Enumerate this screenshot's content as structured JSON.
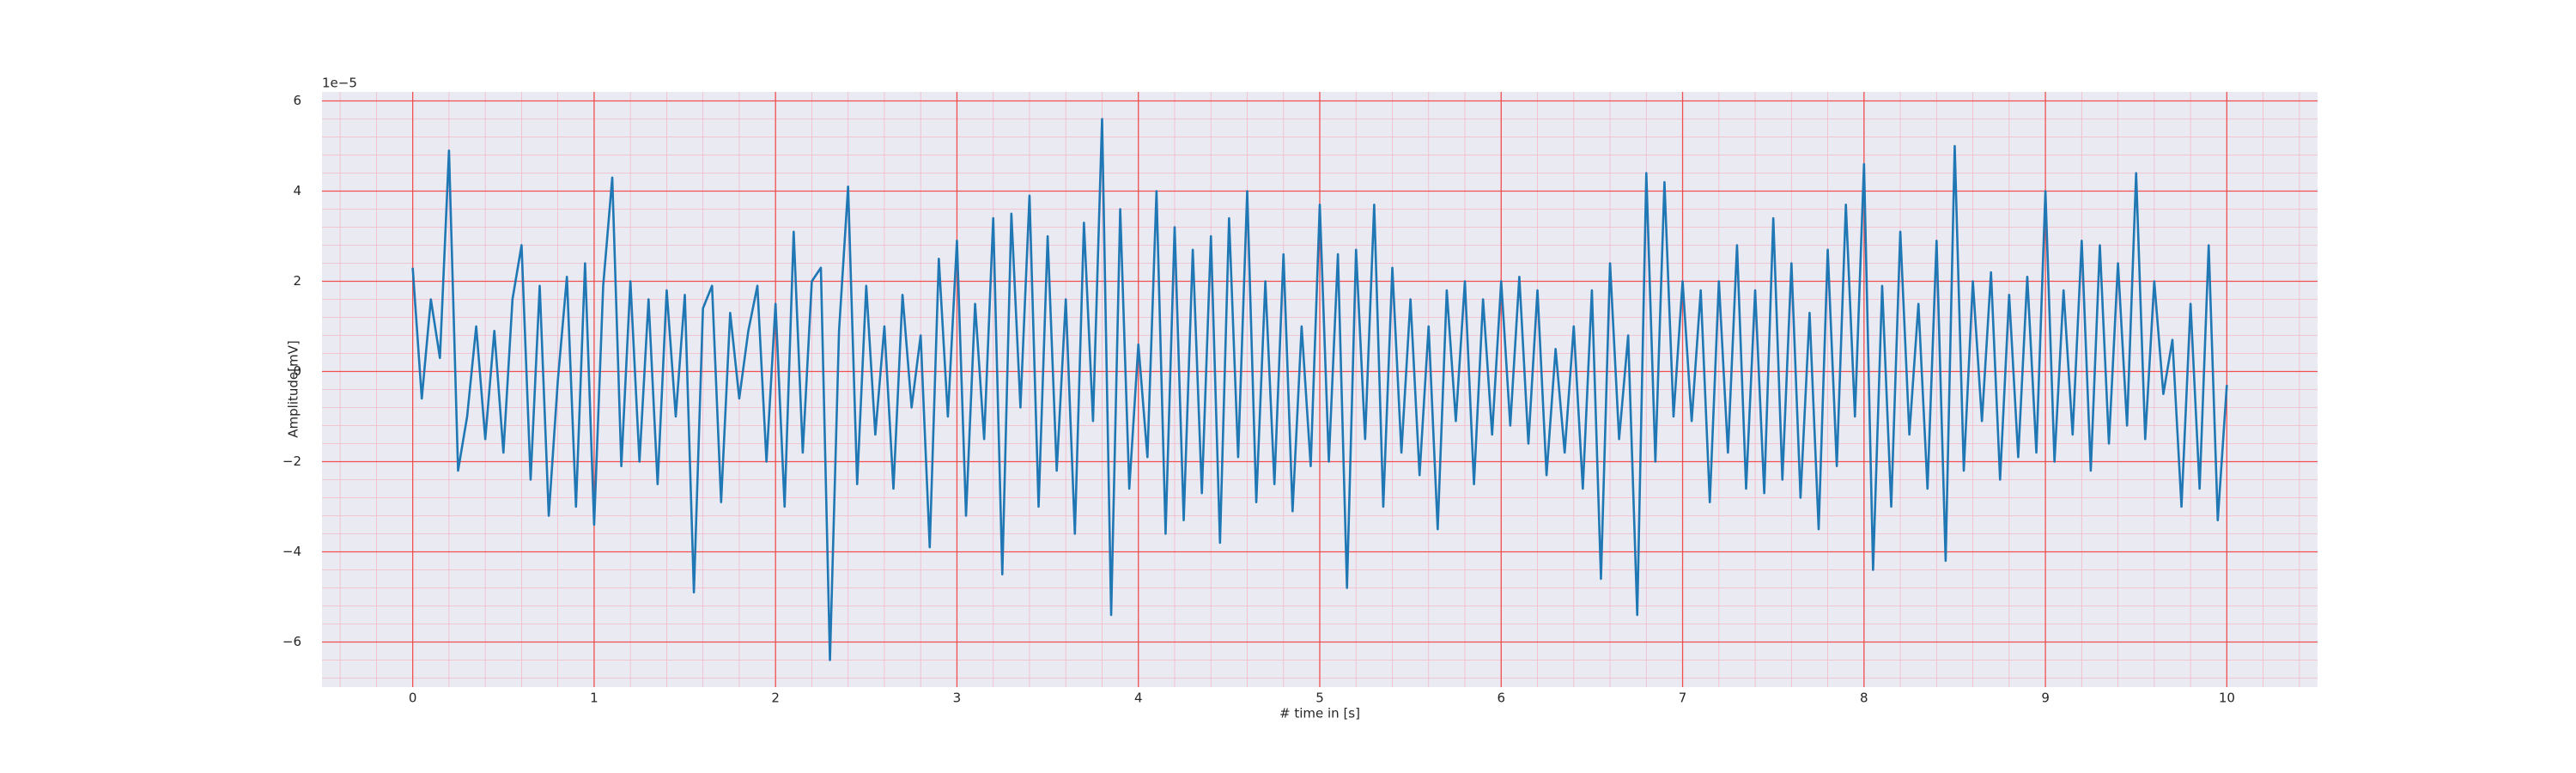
{
  "chart_data": {
    "type": "line",
    "x_label": "# time in [s]",
    "y_label": "Amplitude[mV]",
    "y_offset_text": "1e−5",
    "color": "#1f77b4",
    "grid": true,
    "minor_grid": true,
    "xlim": [
      -0.5,
      10.5
    ],
    "ylim": [
      -7,
      6.2
    ],
    "xticks": [
      0,
      1,
      2,
      3,
      4,
      5,
      6,
      7,
      8,
      9,
      10
    ],
    "yticks": [
      {
        "value": -6,
        "label": "−6"
      },
      {
        "value": -4,
        "label": "−4"
      },
      {
        "value": -2,
        "label": "−2"
      },
      0,
      2,
      4,
      6
    ],
    "x": [
      0,
      0.05,
      0.1,
      0.15,
      0.2,
      0.25,
      0.3,
      0.35,
      0.4,
      0.45,
      0.5,
      0.55,
      0.6,
      0.65,
      0.7,
      0.75,
      0.8,
      0.85,
      0.9,
      0.95,
      1,
      1.05,
      1.1,
      1.15,
      1.2,
      1.25,
      1.3,
      1.35,
      1.4,
      1.45,
      1.5,
      1.55,
      1.6,
      1.65,
      1.7,
      1.75,
      1.8,
      1.85,
      1.9,
      1.95,
      2,
      2.05,
      2.1,
      2.15,
      2.2,
      2.25,
      2.3,
      2.35,
      2.4,
      2.45,
      2.5,
      2.55,
      2.6,
      2.65,
      2.7,
      2.75,
      2.8,
      2.85,
      2.9,
      2.95,
      3,
      3.05,
      3.1,
      3.15,
      3.2,
      3.25,
      3.3,
      3.35,
      3.4,
      3.45,
      3.5,
      3.55,
      3.6,
      3.65,
      3.7,
      3.75,
      3.8,
      3.85,
      3.9,
      3.95,
      4,
      4.05,
      4.1,
      4.15,
      4.2,
      4.25,
      4.3,
      4.35,
      4.4,
      4.45,
      4.5,
      4.55,
      4.6,
      4.65,
      4.7,
      4.75,
      4.8,
      4.85,
      4.9,
      4.95,
      5,
      5.05,
      5.1,
      5.15,
      5.2,
      5.25,
      5.3,
      5.35,
      5.4,
      5.45,
      5.5,
      5.55,
      5.6,
      5.65,
      5.7,
      5.75,
      5.8,
      5.85,
      5.9,
      5.95,
      6,
      6.05,
      6.1,
      6.15,
      6.2,
      6.25,
      6.3,
      6.35,
      6.4,
      6.45,
      6.5,
      6.55,
      6.6,
      6.65,
      6.7,
      6.75,
      6.8,
      6.85,
      6.9,
      6.95,
      7,
      7.05,
      7.1,
      7.15,
      7.2,
      7.25,
      7.3,
      7.35,
      7.4,
      7.45,
      7.5,
      7.55,
      7.6,
      7.65,
      7.7,
      7.75,
      7.8,
      7.85,
      7.9,
      7.95,
      8,
      8.05,
      8.1,
      8.15,
      8.2,
      8.25,
      8.3,
      8.35,
      8.4,
      8.45,
      8.5,
      8.55,
      8.6,
      8.65,
      8.7,
      8.75,
      8.8,
      8.85,
      8.9,
      8.95,
      9,
      9.05,
      9.1,
      9.15,
      9.2,
      9.25,
      9.3,
      9.35,
      9.4,
      9.45,
      9.5,
      9.55,
      9.6,
      9.65,
      9.7,
      9.75,
      9.8,
      9.85,
      9.9,
      9.95,
      10
    ],
    "values": [
      2.3,
      -0.6,
      1.6,
      0.3,
      4.9,
      -2.2,
      -1.0,
      1.0,
      -1.5,
      0.9,
      -1.8,
      1.6,
      2.8,
      -2.4,
      1.9,
      -3.2,
      -0.2,
      2.1,
      -3.0,
      2.4,
      -3.4,
      1.9,
      4.3,
      -2.1,
      2.0,
      -2.0,
      1.6,
      -2.5,
      1.8,
      -1.0,
      1.7,
      -4.9,
      1.4,
      1.9,
      -2.9,
      1.3,
      -0.6,
      0.9,
      1.9,
      -2.0,
      1.5,
      -3.0,
      3.1,
      -1.8,
      2.0,
      2.3,
      -6.4,
      0.9,
      4.1,
      -2.5,
      1.9,
      -1.4,
      1.0,
      -2.6,
      1.7,
      -0.8,
      0.8,
      -3.9,
      2.5,
      -1.0,
      2.9,
      -3.2,
      1.5,
      -1.5,
      3.4,
      -4.5,
      3.5,
      -0.8,
      3.9,
      -3.0,
      3.0,
      -2.2,
      1.6,
      -3.6,
      3.3,
      -1.1,
      5.6,
      -5.4,
      3.6,
      -2.6,
      0.6,
      -1.9,
      4.0,
      -3.6,
      3.2,
      -3.3,
      2.7,
      -2.7,
      3.0,
      -3.8,
      3.4,
      -1.9,
      4.0,
      -2.9,
      2.0,
      -2.5,
      2.6,
      -3.1,
      1.0,
      -2.1,
      3.7,
      -2.0,
      2.6,
      -4.8,
      2.7,
      -1.5,
      3.7,
      -3.0,
      2.3,
      -1.8,
      1.6,
      -2.3,
      1.0,
      -3.5,
      1.8,
      -1.1,
      2.0,
      -2.5,
      1.6,
      -1.4,
      2.0,
      -1.2,
      2.1,
      -1.6,
      1.8,
      -2.3,
      0.5,
      -1.8,
      1.0,
      -2.6,
      1.8,
      -4.6,
      2.4,
      -1.5,
      0.8,
      -5.4,
      4.4,
      -2.0,
      4.2,
      -1.0,
      2.0,
      -1.1,
      1.8,
      -2.9,
      2.0,
      -1.8,
      2.8,
      -2.6,
      1.8,
      -2.7,
      3.4,
      -2.4,
      2.4,
      -2.8,
      1.3,
      -3.5,
      2.7,
      -2.1,
      3.7,
      -1.0,
      4.6,
      -4.4,
      1.9,
      -3.0,
      3.1,
      -1.4,
      1.5,
      -2.6,
      2.9,
      -4.2,
      5.0,
      -2.2,
      2.0,
      -1.1,
      2.2,
      -2.4,
      1.7,
      -1.9,
      2.1,
      -1.8,
      4.0,
      -2.0,
      1.8,
      -1.4,
      2.9,
      -2.2,
      2.8,
      -1.6,
      2.4,
      -1.2,
      4.4,
      -1.5,
      2.0,
      -0.5,
      0.7,
      -3.0,
      1.5,
      -2.6,
      2.8,
      -3.3,
      -0.3
    ]
  }
}
